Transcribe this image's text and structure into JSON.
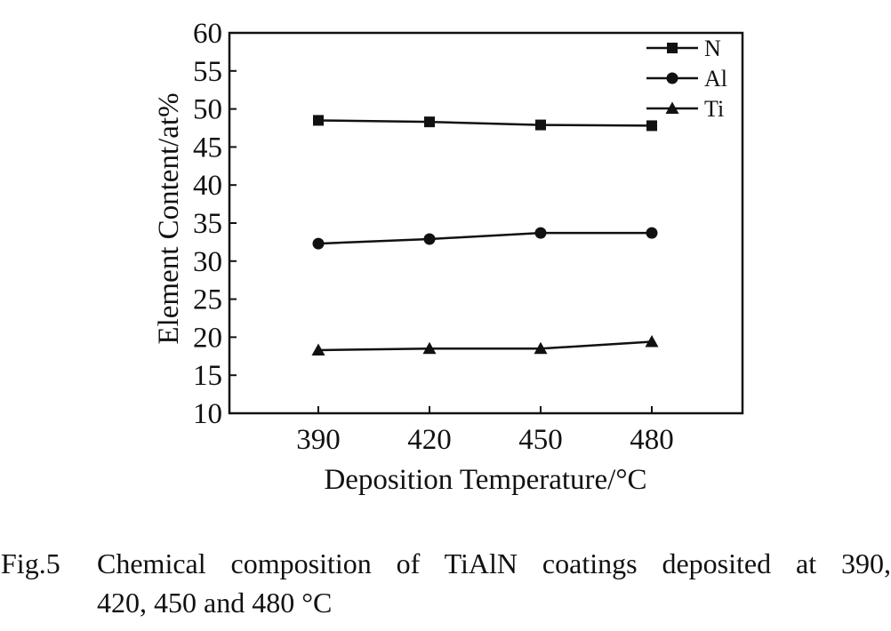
{
  "chart_data": {
    "type": "line",
    "categories": [
      "390",
      "420",
      "450",
      "480"
    ],
    "x": [
      390,
      420,
      450,
      480
    ],
    "series": [
      {
        "name": "N",
        "marker": "square",
        "values": [
          48.5,
          48.3,
          47.9,
          47.8
        ]
      },
      {
        "name": "Al",
        "marker": "circle",
        "values": [
          32.3,
          32.9,
          33.7,
          33.7
        ]
      },
      {
        "name": "Ti",
        "marker": "triangle",
        "values": [
          18.3,
          18.5,
          18.5,
          19.4
        ]
      }
    ],
    "xlabel": "Deposition Temperature/°C",
    "ylabel": "Element Content/at%",
    "ylim": [
      10,
      60
    ],
    "yticks": [
      "10",
      "15",
      "20",
      "25",
      "30",
      "35",
      "40",
      "45",
      "50",
      "55",
      "60"
    ],
    "grid": false,
    "legend_position": "top-right",
    "line_color": "#111111"
  },
  "caption": {
    "number": "Fig.5",
    "line1": "Chemical composition of TiAlN coatings deposited at 390,",
    "line2": "420, 450 and 480 °C"
  }
}
